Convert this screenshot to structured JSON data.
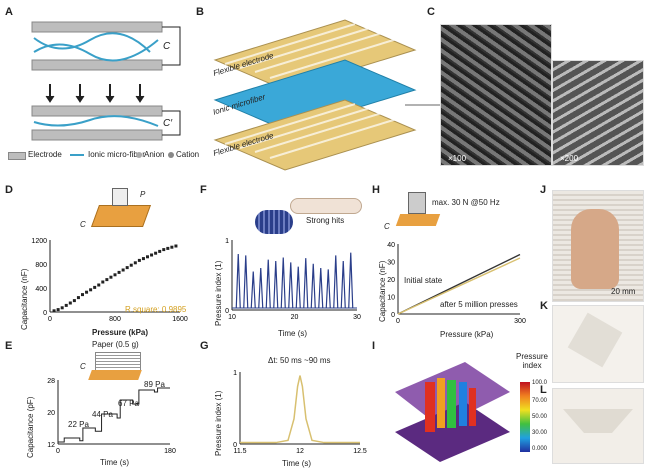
{
  "panels": {
    "A": "A",
    "B": "B",
    "C": "C",
    "D": "D",
    "E": "E",
    "F": "F",
    "G": "G",
    "H": "H",
    "I": "I",
    "J": "J",
    "K": "K",
    "L": "L"
  },
  "panelA": {
    "cap1": "C",
    "cap2": "C′",
    "legend": [
      "Electrode",
      "Ionic micro-fiber",
      "Anion",
      "Cation"
    ]
  },
  "panelB": {
    "top": "Flexible electrode",
    "mid": "Ionic microfiber",
    "bottom": "Flexible electrode"
  },
  "panelC": {
    "scale1": "×100",
    "scale2": "×200"
  },
  "panelD": {
    "ylabel": "Capacitance (nF)",
    "xlabel": "Pressure (kPa)",
    "note": "R square: 0.9895",
    "p": "P",
    "c": "C"
  },
  "panelE": {
    "ylabel": "Capacitance (pF)",
    "xlabel": "Time (s)",
    "paper": "Paper (0.5 g)",
    "steps": [
      "22 Pa",
      "44 Pa",
      "67 Pa",
      "89 Pa"
    ],
    "c": "C"
  },
  "panelF": {
    "ylabel": "Pressure index (1)",
    "xlabel": "Time (s)",
    "hits": "Strong hits"
  },
  "panelG": {
    "ylabel": "Pressure index (1)",
    "xlabel": "Time (s)",
    "dt": "Δt: 50 ms ~90 ms"
  },
  "panelH": {
    "ylabel": "Capacitance (nF)",
    "xlabel": "Pressure (kPa)",
    "top": "max. 30 N @50 Hz",
    "initial": "Initial state",
    "after": "after 5 million presses",
    "c": "C"
  },
  "panelI": {
    "colorbar_title": "Pressure index",
    "ticks": [
      "100.0",
      "70.00",
      "50.00",
      "30.00",
      "0.000"
    ]
  },
  "panelJ": {
    "scale": "20 mm"
  },
  "chart_data": [
    {
      "type": "scatter",
      "panel": "D",
      "xlabel": "Pressure (kPa)",
      "ylabel": "Capacitance (nF)",
      "xticks": [
        "0",
        "800",
        "1600"
      ],
      "yticks": [
        "0",
        "400",
        "800",
        "1200"
      ],
      "xlim": [
        0,
        1600
      ],
      "ylim": [
        0,
        1200
      ],
      "x": [
        50,
        100,
        150,
        200,
        250,
        300,
        350,
        400,
        450,
        500,
        550,
        600,
        650,
        700,
        750,
        800,
        850,
        900,
        950,
        1000,
        1050,
        1100,
        1150,
        1200,
        1250,
        1300,
        1350,
        1400,
        1450,
        1500,
        1550
      ],
      "y": [
        20,
        40,
        70,
        110,
        150,
        190,
        240,
        290,
        330,
        370,
        410,
        450,
        500,
        540,
        580,
        620,
        660,
        700,
        740,
        780,
        820,
        860,
        890,
        920,
        950,
        980,
        1010,
        1040,
        1060,
        1080,
        1100
      ]
    },
    {
      "type": "line",
      "panel": "E",
      "xlabel": "Time (s)",
      "ylabel": "Capacitance (pF)",
      "xticks": [
        "0",
        "180"
      ],
      "yticks": [
        "12",
        "20",
        "28"
      ],
      "xlim": [
        0,
        180
      ],
      "ylim": [
        12,
        28
      ],
      "x": [
        0,
        10,
        10,
        35,
        35,
        40,
        40,
        60,
        60,
        70,
        70,
        95,
        95,
        100,
        100,
        120,
        120,
        130,
        130,
        155,
        155,
        160,
        160,
        180
      ],
      "y": [
        12.5,
        12.5,
        13.5,
        13.5,
        12.8,
        12.8,
        16,
        16,
        15.2,
        15.2,
        19.5,
        19.5,
        18.5,
        18.5,
        23,
        23,
        22,
        22,
        25.5,
        25.5,
        25,
        25,
        26,
        26
      ]
    },
    {
      "type": "line",
      "panel": "F",
      "xlabel": "Time (s)",
      "ylabel": "Pressure index (1)",
      "xticks": [
        "10",
        "20",
        "30"
      ],
      "yticks": [
        "0",
        "1"
      ],
      "xlim": [
        10,
        30
      ],
      "ylim": [
        0,
        1
      ],
      "peaks_x": [
        11,
        12.2,
        13.4,
        14.6,
        15.8,
        17,
        18.2,
        19.4,
        20.6,
        21.8,
        23,
        24.2,
        25.4,
        26.6,
        27.8,
        29
      ],
      "peaks_y": [
        0.8,
        0.78,
        0.55,
        0.6,
        0.72,
        0.7,
        0.75,
        0.68,
        0.62,
        0.74,
        0.66,
        0.6,
        0.58,
        0.78,
        0.7,
        0.82
      ]
    },
    {
      "type": "line",
      "panel": "G",
      "xlabel": "Time (s)",
      "ylabel": "Pressure index (1)",
      "xticks": [
        "11.5",
        "12",
        "12.5"
      ],
      "yticks": [
        "0",
        "1"
      ],
      "xlim": [
        11.5,
        12.5
      ],
      "ylim": [
        0,
        1
      ],
      "x": [
        11.5,
        11.8,
        11.9,
        11.95,
        11.98,
        12.0,
        12.02,
        12.05,
        12.1,
        12.2,
        12.5
      ],
      "y": [
        0.02,
        0.02,
        0.05,
        0.35,
        0.8,
        0.95,
        0.8,
        0.35,
        0.05,
        0.02,
        0.02
      ]
    },
    {
      "type": "line",
      "panel": "H",
      "xlabel": "Pressure (kPa)",
      "ylabel": "Capacitance (nF)",
      "xticks": [
        "0",
        "300"
      ],
      "yticks": [
        "0",
        "10",
        "20",
        "30",
        "40"
      ],
      "xlim": [
        0,
        300
      ],
      "ylim": [
        0,
        40
      ],
      "series": [
        {
          "name": "Initial state",
          "x": [
            0,
            300
          ],
          "y": [
            0,
            34
          ]
        },
        {
          "name": "after 5 million presses",
          "x": [
            0,
            300
          ],
          "y": [
            0,
            32
          ]
        }
      ]
    }
  ]
}
